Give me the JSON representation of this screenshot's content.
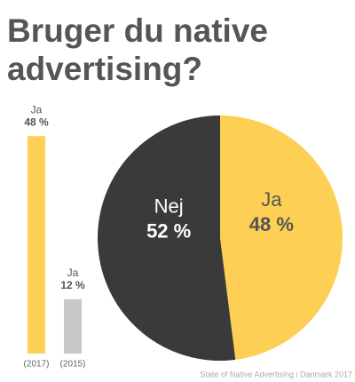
{
  "title": [
    "Bruger du native",
    "advertising?"
  ],
  "source": "State of Native Advertising i Danmark 2017",
  "chart_data": [
    {
      "type": "bar",
      "categories": [
        "(2017)",
        "(2015)"
      ],
      "labels": [
        "Ja",
        "Ja"
      ],
      "values": [
        48,
        12
      ],
      "value_labels": [
        "48 %",
        "12 %"
      ],
      "colors": [
        "#fdd055",
        "#c8c8c8"
      ]
    },
    {
      "type": "pie",
      "categories": [
        "Ja",
        "Nej"
      ],
      "values": [
        48,
        52
      ],
      "value_labels": [
        "48 %",
        "52 %"
      ],
      "colors": [
        "#fdd055",
        "#3a3a3a"
      ]
    }
  ]
}
